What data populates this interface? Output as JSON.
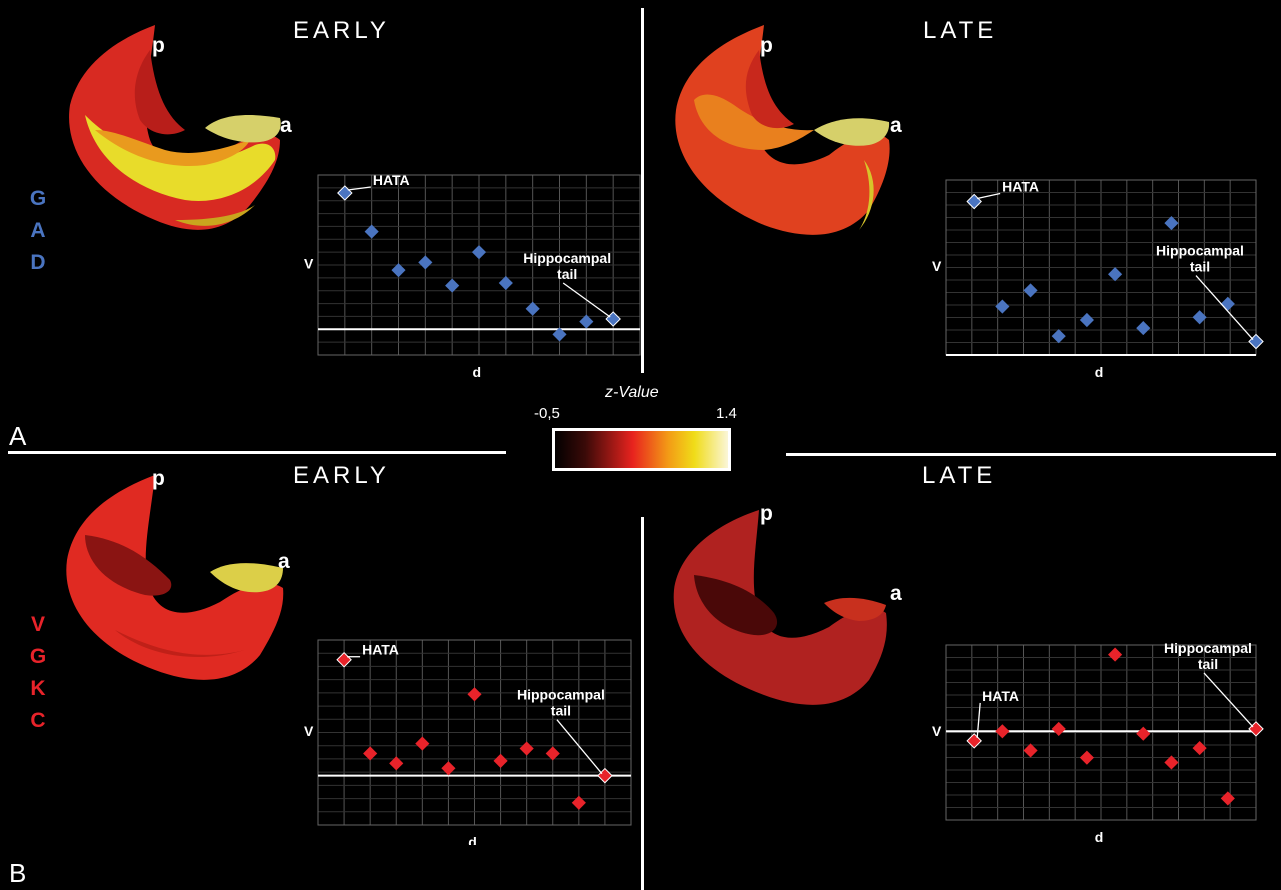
{
  "panel_labels": [
    "A",
    "B"
  ],
  "group_labels": {
    "gad": [
      "G",
      "A",
      "D"
    ],
    "vgkc": [
      "V",
      "G",
      "K",
      "C"
    ]
  },
  "colors": {
    "gad": "#4a74c0",
    "vgkc": "#e8232a",
    "axis": "#ffffff",
    "grid": "#555555"
  },
  "colorbar": {
    "title": "z-Value",
    "min_label": "-0,5",
    "max_label": "1.4"
  },
  "brain_labels": {
    "posterior": "p",
    "anterior": "a"
  },
  "panels": [
    {
      "title": "EARLY",
      "group": "GAD",
      "chart": {
        "xlabel": "d",
        "ylabel": "V",
        "hata": "HATA",
        "tail_line1": "Hippocampal",
        "tail_line2": "tail"
      }
    },
    {
      "title": "LATE",
      "group": "GAD",
      "chart": {
        "xlabel": "d",
        "ylabel": "V",
        "hata": "HATA",
        "tail_line1": "Hippocampal",
        "tail_line2": "tail"
      }
    },
    {
      "title": "EARLY",
      "group": "VGKC",
      "chart": {
        "xlabel": "d",
        "ylabel": "V",
        "hata": "HATA",
        "tail_line1": "Hippocampal",
        "tail_line2": "tail"
      }
    },
    {
      "title": "LATE",
      "group": "VGKC",
      "chart": {
        "xlabel": "d",
        "ylabel": "V",
        "hata": "HATA",
        "tail_line1": "Hippocampal",
        "tail_line2": "tail"
      }
    }
  ],
  "chart_data": [
    {
      "type": "scatter",
      "panel": "GAD EARLY",
      "xlabel": "d",
      "ylabel": "V",
      "grid": true,
      "x": [
        1,
        2,
        3,
        4,
        5,
        6,
        7,
        8,
        9,
        10,
        11
      ],
      "values": [
        5.3,
        3.8,
        2.3,
        2.6,
        1.7,
        3.0,
        1.8,
        0.8,
        -0.2,
        0.3,
        0.4
      ],
      "baseline": 0,
      "ylim": [
        -1,
        6
      ],
      "xlim": [
        0,
        12
      ]
    },
    {
      "type": "scatter",
      "panel": "GAD LATE",
      "xlabel": "d",
      "ylabel": "V",
      "grid": true,
      "x": [
        1,
        2,
        3,
        4,
        5,
        6,
        7,
        8,
        9,
        10,
        11
      ],
      "values": [
        5.2,
        1.3,
        1.9,
        0.2,
        0.8,
        2.5,
        0.5,
        4.4,
        0.9,
        1.4,
        0.0
      ],
      "baseline": -0.5,
      "ylim": [
        -0.5,
        6
      ],
      "xlim": [
        0,
        11
      ]
    },
    {
      "type": "scatter",
      "panel": "VGKC EARLY",
      "xlabel": "d",
      "ylabel": "V",
      "grid": true,
      "x": [
        1,
        2,
        3,
        4,
        5,
        6,
        7,
        8,
        9,
        10,
        11
      ],
      "values": [
        4.7,
        0.9,
        0.5,
        1.3,
        0.3,
        3.3,
        0.6,
        1.1,
        0.9,
        -1.1,
        0.0
      ],
      "baseline": 0,
      "ylim": [
        -2,
        5.5
      ],
      "xlim": [
        0,
        12
      ]
    },
    {
      "type": "scatter",
      "panel": "VGKC LATE",
      "xlabel": "d",
      "ylabel": "V",
      "grid": true,
      "x": [
        1,
        2,
        3,
        4,
        5,
        6,
        7,
        8,
        9,
        10,
        11
      ],
      "values": [
        -0.4,
        0.0,
        -0.8,
        0.1,
        -1.1,
        3.2,
        -0.1,
        -1.3,
        -0.7,
        -2.8,
        0.1
      ],
      "baseline": 0,
      "ylim": [
        -3.7,
        3.6
      ],
      "xlim": [
        0,
        11
      ]
    }
  ]
}
